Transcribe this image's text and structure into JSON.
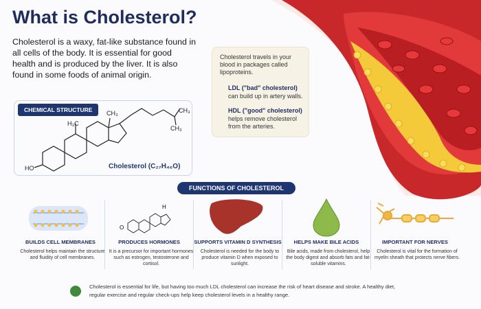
{
  "header": {
    "title": "What is Cholesterol?",
    "intro": "Cholesterol is a waxy, fat-like substance found in all cells of the body. It is essential for good health and is produced by the liver. It is also found in some foods of animal origin."
  },
  "structure": {
    "label": "CHEMICAL STRUCTURE",
    "atoms": [
      "CH₃",
      "H₃C",
      "CH₃",
      "CH₃",
      "HO"
    ],
    "caption": "Cholesterol (C₂₇H₄₆O)"
  },
  "blood": {
    "intro": "Cholesterol travels in your blood in packages called lipoproteins.",
    "items": [
      {
        "name": "LDL (\"bad\" cholesterol)",
        "text": "can build up in artery walls."
      },
      {
        "name": "HDL (\"good\" cholesterol)",
        "text": "helps remove cholesterol from the arteries."
      }
    ]
  },
  "functions": {
    "title": "FUNCTIONS OF CHOLESTEROL",
    "items": [
      {
        "title": "BUILDS CELL MEMBRANES",
        "text": "Cholesterol helps maintain the structure and fluidity of cell membranes."
      },
      {
        "title": "PRODUCES HORMONES",
        "text": "It is a precursor for important hormones such as estrogen, testosterone and cortisol.",
        "atoms": [
          "H",
          "O"
        ]
      },
      {
        "title": "SUPPORTS VITAMIN D SYNTHESIS",
        "text": "Cholesterol is needed for the body to produce vitamin D when exposed to sunlight."
      },
      {
        "title": "HELPS MAKE BILE ACIDS",
        "text": "Bile acids, made from cholesterol, help the body digest and absorb fats and fat-soluble vitamins."
      },
      {
        "title": "IMPORTANT FOR NERVES",
        "text": "Cholesterol is vital for the formation of myelin sheath that protects nerve fibers."
      }
    ]
  },
  "footer": {
    "text": "Cholesterol is essential for life, but having too much LDL cholesterol can increase the risk of heart disease and stroke. A healthy diet, regular exercise and regular check-ups help keep cholesterol levels in a healthy range."
  }
}
